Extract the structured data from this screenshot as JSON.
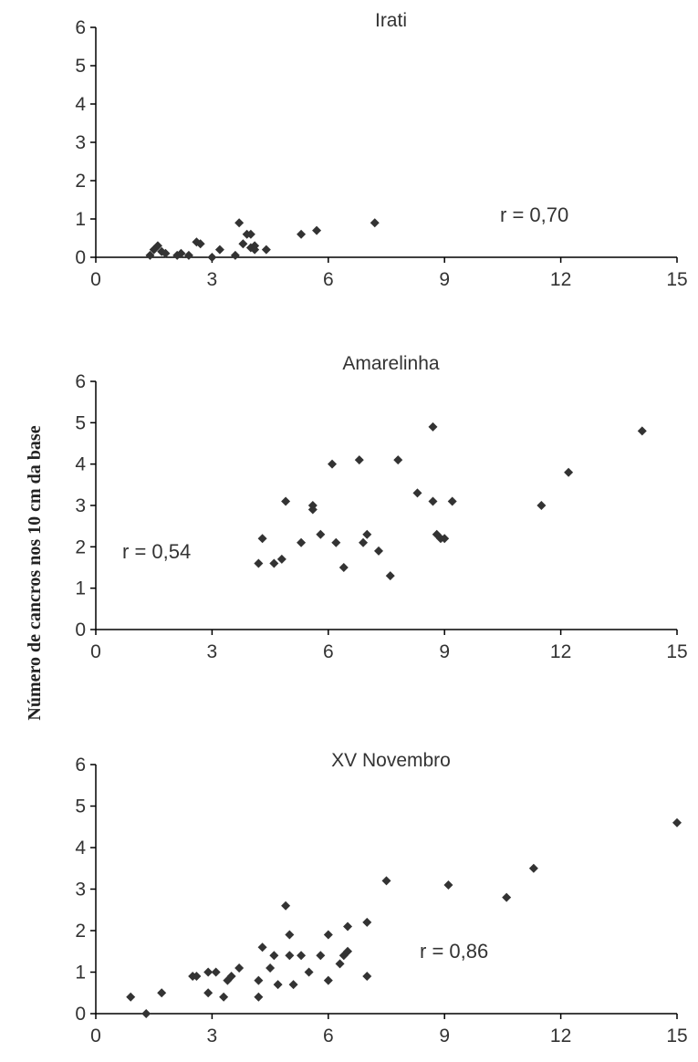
{
  "ylabel": "Número de cancros nos 10 cm da base",
  "colors": {
    "axis": "#000000",
    "marker": "#333333",
    "text": "#333333"
  },
  "chart_data": [
    {
      "type": "scatter",
      "title": "Irati",
      "annotation": "r = 0,70",
      "xlim": [
        0,
        15
      ],
      "ylim": [
        0,
        6
      ],
      "xticks": [
        0,
        3,
        6,
        9,
        12,
        15
      ],
      "yticks": [
        0,
        1,
        2,
        3,
        4,
        5,
        6
      ],
      "marker": "diamond",
      "points": [
        [
          1.4,
          0.05
        ],
        [
          1.5,
          0.2
        ],
        [
          1.6,
          0.3
        ],
        [
          1.7,
          0.15
        ],
        [
          1.8,
          0.1
        ],
        [
          2.1,
          0.05
        ],
        [
          2.2,
          0.1
        ],
        [
          2.4,
          0.05
        ],
        [
          2.6,
          0.4
        ],
        [
          2.7,
          0.35
        ],
        [
          3.0,
          0.0
        ],
        [
          3.2,
          0.2
        ],
        [
          3.6,
          0.05
        ],
        [
          3.7,
          0.9
        ],
        [
          3.8,
          0.35
        ],
        [
          3.9,
          0.6
        ],
        [
          4.0,
          0.6
        ],
        [
          4.0,
          0.25
        ],
        [
          4.1,
          0.3
        ],
        [
          4.1,
          0.2
        ],
        [
          4.4,
          0.2
        ],
        [
          5.3,
          0.6
        ],
        [
          5.7,
          0.7
        ],
        [
          7.2,
          0.9
        ]
      ]
    },
    {
      "type": "scatter",
      "title": "Amarelinha",
      "annotation": "r = 0,54",
      "xlim": [
        0,
        15
      ],
      "ylim": [
        0,
        6
      ],
      "xticks": [
        0,
        3,
        6,
        9,
        12,
        15
      ],
      "yticks": [
        0,
        1,
        2,
        3,
        4,
        5,
        6
      ],
      "marker": "diamond",
      "points": [
        [
          4.2,
          1.6
        ],
        [
          4.3,
          2.2
        ],
        [
          4.6,
          1.6
        ],
        [
          4.8,
          1.7
        ],
        [
          4.9,
          3.1
        ],
        [
          5.3,
          2.1
        ],
        [
          5.6,
          3.0
        ],
        [
          5.6,
          2.9
        ],
        [
          5.8,
          2.3
        ],
        [
          6.1,
          4.0
        ],
        [
          6.2,
          2.1
        ],
        [
          6.4,
          1.5
        ],
        [
          6.8,
          4.1
        ],
        [
          6.9,
          2.1
        ],
        [
          7.0,
          2.3
        ],
        [
          7.3,
          1.9
        ],
        [
          7.6,
          1.3
        ],
        [
          7.8,
          4.1
        ],
        [
          8.3,
          3.3
        ],
        [
          8.7,
          3.1
        ],
        [
          8.7,
          4.9
        ],
        [
          8.8,
          2.3
        ],
        [
          8.9,
          2.2
        ],
        [
          9.0,
          2.2
        ],
        [
          9.2,
          3.1
        ],
        [
          11.5,
          3.0
        ],
        [
          12.2,
          3.8
        ],
        [
          14.1,
          4.8
        ]
      ]
    },
    {
      "type": "scatter",
      "title": "XV Novembro",
      "annotation": "r = 0,86",
      "xlim": [
        0,
        15
      ],
      "ylim": [
        0,
        6
      ],
      "xticks": [
        0,
        3,
        6,
        9,
        12,
        15
      ],
      "yticks": [
        0,
        1,
        2,
        3,
        4,
        5,
        6
      ],
      "marker": "diamond",
      "points": [
        [
          0.9,
          0.4
        ],
        [
          1.3,
          0.0
        ],
        [
          1.7,
          0.5
        ],
        [
          2.5,
          0.9
        ],
        [
          2.6,
          0.9
        ],
        [
          2.9,
          0.5
        ],
        [
          2.9,
          1.0
        ],
        [
          3.1,
          1.0
        ],
        [
          3.3,
          0.4
        ],
        [
          3.4,
          0.8
        ],
        [
          3.5,
          0.9
        ],
        [
          3.7,
          1.1
        ],
        [
          4.2,
          0.4
        ],
        [
          4.2,
          0.8
        ],
        [
          4.3,
          1.6
        ],
        [
          4.5,
          1.1
        ],
        [
          4.6,
          1.4
        ],
        [
          4.7,
          0.7
        ],
        [
          4.9,
          2.6
        ],
        [
          5.0,
          1.9
        ],
        [
          5.0,
          1.4
        ],
        [
          5.1,
          0.7
        ],
        [
          5.3,
          1.4
        ],
        [
          5.5,
          1.0
        ],
        [
          5.8,
          1.4
        ],
        [
          6.0,
          0.8
        ],
        [
          6.0,
          1.9
        ],
        [
          6.3,
          1.2
        ],
        [
          6.4,
          1.4
        ],
        [
          6.5,
          1.5
        ],
        [
          6.5,
          2.1
        ],
        [
          7.0,
          2.2
        ],
        [
          7.0,
          0.9
        ],
        [
          7.5,
          3.2
        ],
        [
          9.1,
          3.1
        ],
        [
          10.6,
          2.8
        ],
        [
          11.3,
          3.5
        ],
        [
          15.0,
          4.6
        ]
      ]
    }
  ]
}
